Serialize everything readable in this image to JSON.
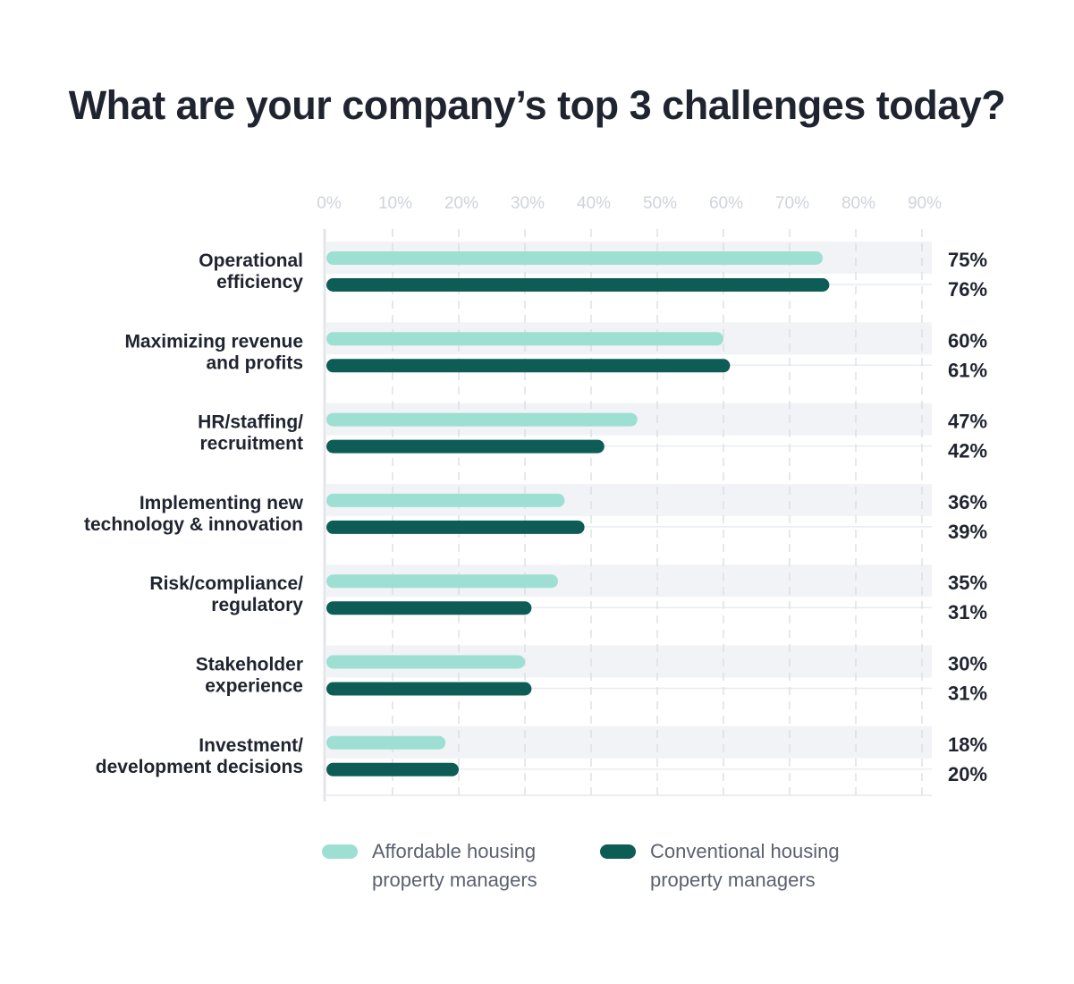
{
  "chart_data": {
    "type": "bar",
    "orientation": "horizontal",
    "title": "What are your company’s top 3 challenges today?",
    "x_ticks": [
      "0%",
      "10%",
      "20%",
      "30%",
      "40%",
      "50%",
      "60%",
      "70%",
      "80%",
      "90%"
    ],
    "xlim": [
      0,
      92
    ],
    "grid": true,
    "legend_position": "bottom",
    "categories": [
      [
        "Operational",
        "efficiency"
      ],
      [
        "Maximizing revenue",
        "and profits"
      ],
      [
        "HR/staffing/",
        "recruitment"
      ],
      [
        "Implementing new",
        "technology & innovation"
      ],
      [
        "Risk/compliance/",
        "regulatory"
      ],
      [
        "Stakeholder",
        "experience"
      ],
      [
        "Investment/",
        "development decisions"
      ]
    ],
    "series": [
      {
        "name": [
          "Affordable housing",
          "property managers"
        ],
        "color": "#9ddfd3",
        "values": [
          75,
          60,
          47,
          36,
          35,
          30,
          18
        ],
        "labels": [
          "75%",
          "60%",
          "47%",
          "36%",
          "35%",
          "30%",
          "18%"
        ]
      },
      {
        "name": [
          "Conventional housing",
          "property managers"
        ],
        "color": "#0d5c55",
        "values": [
          76,
          61,
          42,
          39,
          31,
          31,
          20
        ],
        "labels": [
          "76%",
          "61%",
          "42%",
          "39%",
          "31%",
          "31%",
          "20%"
        ]
      }
    ]
  }
}
